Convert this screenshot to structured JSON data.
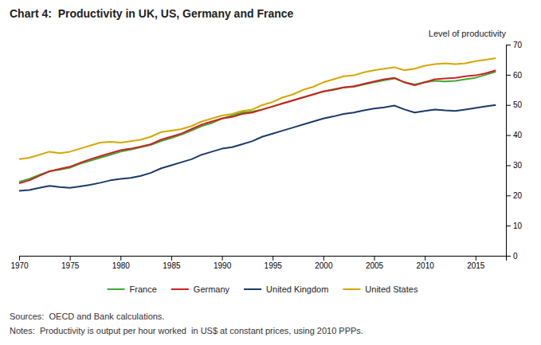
{
  "chart_data": {
    "type": "line",
    "title": "Chart 4:  Productivity in UK, US, Germany and France",
    "ylabel": "Level of productivity",
    "annotations": [
      "Sources:  OECD and Bank calculations.",
      "Notes:  Productivity is output per hour worked  in US$ at constant prices, using 2010 PPPs."
    ],
    "x": [
      1970,
      1971,
      1972,
      1973,
      1974,
      1975,
      1976,
      1977,
      1978,
      1979,
      1980,
      1981,
      1982,
      1983,
      1984,
      1985,
      1986,
      1987,
      1988,
      1989,
      1990,
      1991,
      1992,
      1993,
      1994,
      1995,
      1996,
      1997,
      1998,
      1999,
      2000,
      2001,
      2002,
      2003,
      2004,
      2005,
      2006,
      2007,
      2008,
      2009,
      2010,
      2011,
      2012,
      2013,
      2014,
      2015,
      2016,
      2017
    ],
    "series": [
      {
        "name": "France",
        "color": "#3aaa35",
        "values": [
          24.5,
          25.5,
          26.8,
          28.0,
          28.5,
          29.2,
          30.5,
          31.5,
          32.5,
          33.5,
          34.5,
          35.2,
          36.0,
          36.8,
          38.0,
          39.0,
          40.2,
          41.5,
          43.0,
          44.0,
          45.5,
          46.5,
          47.5,
          47.8,
          48.5,
          49.5,
          50.5,
          51.5,
          52.5,
          53.5,
          54.5,
          55.2,
          55.8,
          56.0,
          56.8,
          57.5,
          58.2,
          58.8,
          57.5,
          56.8,
          57.5,
          58.0,
          57.8,
          58.0,
          58.5,
          59.0,
          60.0,
          61.0
        ]
      },
      {
        "name": "Germany",
        "color": "#cc2222",
        "values": [
          24.0,
          25.0,
          26.5,
          28.0,
          28.8,
          29.5,
          30.8,
          32.0,
          33.0,
          34.0,
          35.0,
          35.5,
          36.2,
          37.0,
          38.5,
          39.5,
          40.5,
          42.0,
          43.5,
          44.5,
          45.5,
          46.0,
          47.0,
          47.5,
          48.5,
          49.5,
          50.5,
          51.5,
          52.5,
          53.5,
          54.5,
          55.0,
          55.8,
          56.2,
          57.0,
          57.8,
          58.5,
          59.0,
          57.5,
          56.5,
          57.5,
          58.5,
          58.8,
          59.0,
          59.5,
          59.8,
          60.5,
          61.5
        ]
      },
      {
        "name": "United Kingdom",
        "color": "#1a3a6b",
        "values": [
          21.5,
          21.8,
          22.5,
          23.2,
          22.8,
          22.5,
          23.0,
          23.5,
          24.2,
          25.0,
          25.5,
          25.8,
          26.5,
          27.5,
          29.0,
          30.0,
          31.0,
          32.0,
          33.5,
          34.5,
          35.5,
          36.0,
          37.0,
          38.0,
          39.5,
          40.5,
          41.5,
          42.5,
          43.5,
          44.5,
          45.5,
          46.2,
          47.0,
          47.5,
          48.2,
          48.8,
          49.2,
          49.8,
          48.5,
          47.5,
          48.0,
          48.5,
          48.2,
          48.0,
          48.5,
          49.0,
          49.5,
          50.0
        ]
      },
      {
        "name": "United States",
        "color": "#d4a800",
        "values": [
          32.0,
          32.5,
          33.5,
          34.5,
          34.0,
          34.5,
          35.5,
          36.5,
          37.5,
          37.8,
          37.5,
          38.0,
          38.5,
          39.5,
          41.0,
          41.5,
          42.0,
          43.0,
          44.5,
          45.5,
          46.5,
          47.0,
          48.0,
          48.5,
          50.0,
          51.0,
          52.5,
          53.5,
          55.0,
          56.0,
          57.5,
          58.5,
          59.5,
          59.8,
          60.8,
          61.5,
          62.0,
          62.5,
          61.5,
          62.0,
          63.0,
          63.5,
          63.8,
          63.5,
          63.8,
          64.5,
          65.0,
          65.5
        ]
      }
    ],
    "xlim": [
      1970,
      2018
    ],
    "xticks": [
      1970,
      1975,
      1980,
      1985,
      1990,
      1995,
      2000,
      2005,
      2010,
      2015
    ],
    "ylim": [
      0,
      70
    ],
    "yticks": [
      0,
      10,
      20,
      30,
      40,
      50,
      60,
      70
    ],
    "grid": false,
    "legend": "bottom"
  }
}
